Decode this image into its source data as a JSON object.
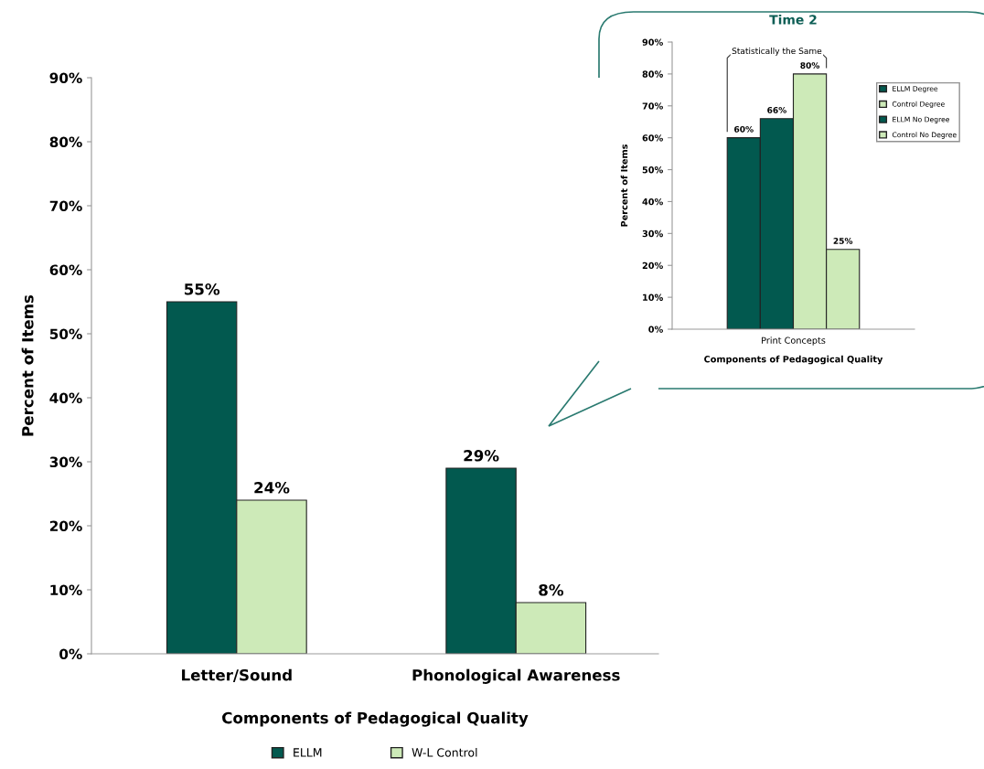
{
  "chart_data": [
    {
      "type": "bar",
      "categories": [
        "Letter/Sound",
        "Phonological Awareness"
      ],
      "xlabel": "Components of Pedagogical Quality",
      "ylabel": "Percent of Items",
      "series": [
        {
          "name": "ELLM",
          "color": "#02594f",
          "values": [
            55,
            29
          ],
          "value_labels": [
            "55%",
            "29%"
          ]
        },
        {
          "name": "W-L Control",
          "color": "#cdeab8",
          "values": [
            24,
            8
          ],
          "value_labels": [
            "24%",
            "8%"
          ]
        }
      ],
      "ylim": [
        0,
        90
      ],
      "yticks": [
        {
          "value": 0,
          "label": "0%"
        },
        {
          "value": 10,
          "label": "10%"
        },
        {
          "value": 20,
          "label": "20%"
        },
        {
          "value": 30,
          "label": "30%"
        },
        {
          "value": 40,
          "label": "40%"
        },
        {
          "value": 50,
          "label": "50%"
        },
        {
          "value": 60,
          "label": "60%"
        },
        {
          "value": 70,
          "label": "70%"
        },
        {
          "value": 80,
          "label": "80%"
        },
        {
          "value": 90,
          "label": "90%"
        }
      ],
      "grid": false,
      "legend": "bottom"
    },
    {
      "type": "bar",
      "title": "Time 2",
      "categories": [
        "Print Concepts"
      ],
      "xlabel": "Components of Pedagogical Quality",
      "ylabel": "Percent of Items",
      "series": [
        {
          "name": "ELLM Degree",
          "color": "#02594f",
          "values": [
            60
          ],
          "value_labels": [
            "60%"
          ]
        },
        {
          "name": "ELLM No Degree",
          "color": "#02594f",
          "values": [
            66
          ],
          "value_labels": [
            "66%"
          ]
        },
        {
          "name": "Control Degree",
          "color": "#cdeab8",
          "values": [
            80
          ],
          "value_labels": [
            "80%"
          ]
        },
        {
          "name": "Control No Degree",
          "color": "#cdeab8",
          "values": [
            25
          ],
          "value_labels": [
            "25%"
          ]
        }
      ],
      "annotations": [
        "Statistically the Same"
      ],
      "ylim": [
        0,
        90
      ],
      "yticks": [
        {
          "value": 0,
          "label": "0%"
        },
        {
          "value": 10,
          "label": "10%"
        },
        {
          "value": 20,
          "label": "20%"
        },
        {
          "value": 30,
          "label": "30%"
        },
        {
          "value": 40,
          "label": "40%"
        },
        {
          "value": 50,
          "label": "50%"
        },
        {
          "value": 60,
          "label": "60%"
        },
        {
          "value": 70,
          "label": "70%"
        },
        {
          "value": 80,
          "label": "80%"
        },
        {
          "value": 90,
          "label": "90%"
        }
      ],
      "grid": false,
      "legend": "right"
    }
  ]
}
